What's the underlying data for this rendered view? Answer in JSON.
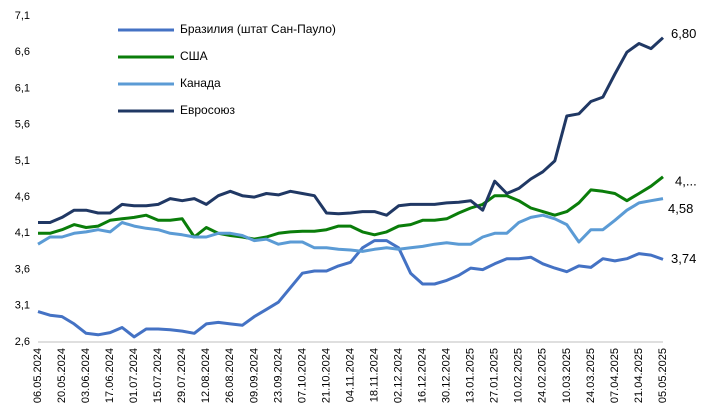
{
  "chart_data": {
    "type": "line",
    "categories": [
      "06.05.2024",
      null,
      "20.05.2024",
      null,
      "03.06.2024",
      null,
      "17.06.2024",
      null,
      "01.07.2024",
      null,
      "15.07.2024",
      null,
      "29.07.2024",
      null,
      "12.08.2024",
      null,
      "26.08.2024",
      null,
      "09.09.2024",
      null,
      "23.09.2024",
      null,
      "07.10.2024",
      null,
      "21.10.2024",
      null,
      "04.11.2024",
      null,
      "18.11.2024",
      null,
      "02.12.2024",
      null,
      "16.12.2024",
      null,
      "30.12.2024",
      null,
      "13.01.2025",
      null,
      "27.01.2025",
      null,
      "10.02.2025",
      null,
      "24.02.2025",
      null,
      "10.03.2025",
      null,
      "24.03.2025",
      null,
      "07.04.2025",
      null,
      "21.04.2025",
      null,
      "05.05.2025"
    ],
    "series": [
      {
        "name": "Бразилия (штат Сан-Пауло)",
        "color": "#4472c4",
        "values": [
          3.02,
          2.97,
          2.95,
          2.85,
          2.72,
          2.7,
          2.73,
          2.8,
          2.67,
          2.78,
          2.78,
          2.77,
          2.75,
          2.72,
          2.85,
          2.87,
          2.85,
          2.83,
          2.95,
          3.05,
          3.15,
          3.35,
          3.55,
          3.58,
          3.58,
          3.65,
          3.7,
          3.9,
          4.0,
          4.0,
          3.9,
          3.55,
          3.4,
          3.4,
          3.45,
          3.52,
          3.62,
          3.6,
          3.68,
          3.75,
          3.75,
          3.77,
          3.68,
          3.62,
          3.57,
          3.65,
          3.63,
          3.75,
          3.72,
          3.75,
          3.82,
          3.8,
          3.74
        ],
        "value_labels": [
          null,
          null,
          null,
          null,
          null,
          null,
          null,
          null,
          null,
          null,
          null,
          null,
          null,
          null,
          null,
          null,
          null,
          null,
          null,
          null,
          null,
          null,
          null,
          null,
          null,
          null,
          null,
          null,
          null,
          null,
          null,
          null,
          null,
          null,
          null,
          null,
          null,
          null,
          null,
          null,
          null,
          null,
          null,
          null,
          null,
          null,
          null,
          null,
          null,
          null,
          null,
          null,
          "3,74"
        ]
      },
      {
        "name": "США",
        "color": "#0a7d0a",
        "values": [
          4.1,
          4.1,
          4.15,
          4.22,
          4.18,
          4.2,
          4.28,
          4.3,
          4.32,
          4.35,
          4.28,
          4.28,
          4.3,
          4.05,
          4.18,
          4.1,
          4.07,
          4.05,
          4.02,
          4.05,
          4.1,
          4.12,
          4.13,
          4.13,
          4.15,
          4.2,
          4.2,
          4.12,
          4.08,
          4.12,
          4.2,
          4.22,
          4.28,
          4.28,
          4.3,
          4.38,
          4.45,
          4.5,
          4.62,
          4.62,
          4.55,
          4.45,
          4.4,
          4.35,
          4.4,
          4.52,
          4.7,
          4.68,
          4.65,
          4.55,
          4.65,
          4.75,
          4.88
        ],
        "value_labels": [
          null,
          null,
          null,
          null,
          null,
          null,
          null,
          null,
          null,
          null,
          null,
          null,
          null,
          null,
          null,
          null,
          null,
          null,
          null,
          null,
          null,
          null,
          null,
          null,
          null,
          null,
          null,
          null,
          null,
          null,
          null,
          null,
          null,
          null,
          null,
          null,
          null,
          null,
          null,
          null,
          null,
          null,
          null,
          null,
          null,
          null,
          null,
          null,
          null,
          null,
          null,
          null,
          "4,..."
        ]
      },
      {
        "name": "Канада",
        "color": "#5b9bd5",
        "values": [
          3.95,
          4.05,
          4.05,
          4.1,
          4.12,
          4.15,
          4.12,
          4.25,
          4.2,
          4.17,
          4.15,
          4.1,
          4.08,
          4.05,
          4.05,
          4.1,
          4.1,
          4.07,
          4.0,
          4.02,
          3.95,
          3.98,
          3.98,
          3.9,
          3.9,
          3.88,
          3.87,
          3.85,
          3.88,
          3.9,
          3.88,
          3.9,
          3.92,
          3.95,
          3.97,
          3.95,
          3.95,
          4.05,
          4.1,
          4.1,
          4.25,
          4.32,
          4.35,
          4.3,
          4.22,
          3.98,
          4.15,
          4.15,
          4.28,
          4.42,
          4.52,
          4.55,
          4.58
        ],
        "value_labels": [
          null,
          null,
          null,
          null,
          null,
          null,
          null,
          null,
          null,
          null,
          null,
          null,
          null,
          null,
          null,
          null,
          null,
          null,
          null,
          null,
          null,
          null,
          null,
          null,
          null,
          null,
          null,
          null,
          null,
          null,
          null,
          null,
          null,
          null,
          null,
          null,
          null,
          null,
          null,
          null,
          null,
          null,
          null,
          null,
          null,
          null,
          null,
          null,
          null,
          null,
          null,
          null,
          "4,58"
        ]
      },
      {
        "name": "Евросоюз",
        "color": "#203864",
        "values": [
          4.25,
          4.25,
          4.32,
          4.42,
          4.42,
          4.38,
          4.38,
          4.5,
          4.48,
          4.48,
          4.5,
          4.58,
          4.55,
          4.58,
          4.5,
          4.62,
          4.68,
          4.62,
          4.6,
          4.65,
          4.63,
          4.68,
          4.65,
          4.62,
          4.38,
          4.37,
          4.38,
          4.4,
          4.4,
          4.35,
          4.48,
          4.5,
          4.5,
          4.5,
          4.52,
          4.53,
          4.55,
          4.42,
          4.82,
          4.65,
          4.72,
          4.85,
          4.95,
          5.1,
          5.72,
          5.75,
          5.92,
          5.98,
          6.3,
          6.6,
          6.72,
          6.65,
          6.8
        ],
        "value_labels": [
          null,
          null,
          null,
          null,
          null,
          null,
          null,
          null,
          null,
          null,
          null,
          null,
          null,
          null,
          null,
          null,
          null,
          null,
          null,
          null,
          null,
          null,
          null,
          null,
          null,
          null,
          null,
          null,
          null,
          null,
          null,
          null,
          null,
          null,
          null,
          null,
          null,
          null,
          null,
          null,
          null,
          null,
          null,
          null,
          null,
          null,
          null,
          null,
          null,
          null,
          null,
          null,
          "6,80"
        ]
      }
    ],
    "ylim": [
      2.6,
      7.1
    ],
    "yticks": [
      {
        "value": 2.6,
        "label": "2,6"
      },
      {
        "value": 3.1,
        "label": "3,1"
      },
      {
        "value": 3.6,
        "label": "3,6"
      },
      {
        "value": 4.1,
        "label": "4,1"
      },
      {
        "value": 4.6,
        "label": "4,6"
      },
      {
        "value": 5.1,
        "label": "5,1"
      },
      {
        "value": 5.6,
        "label": "5,6"
      },
      {
        "value": 6.1,
        "label": "6,1"
      },
      {
        "value": 6.6,
        "label": "6,6"
      },
      {
        "value": 7.1,
        "label": "7,1"
      }
    ],
    "grid": false,
    "legend": "upper left"
  }
}
